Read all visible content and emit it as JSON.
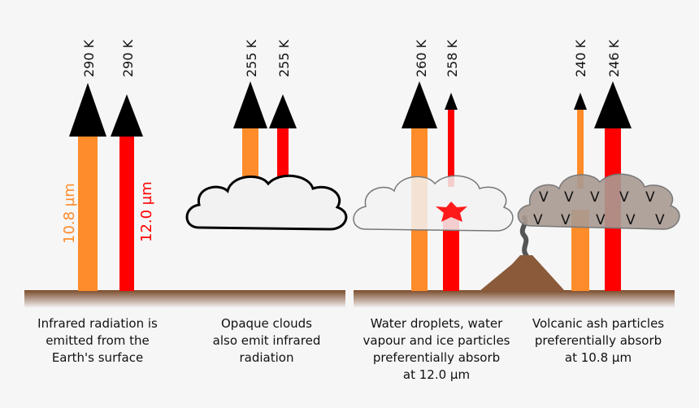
{
  "panels": [
    {
      "caption": [
        "Infrared radiation is",
        "emitted from the",
        "Earth's surface"
      ],
      "temps": [
        "290 K",
        "290 K"
      ]
    },
    {
      "caption": [
        "Opaque clouds",
        "also emit infrared",
        "radiation"
      ],
      "temps": [
        "255 K",
        "255 K"
      ]
    },
    {
      "caption": [
        "Water droplets, water",
        "vapour and ice particles",
        "preferentially absorb",
        "at 12.0 µm"
      ],
      "temps": [
        "260 K",
        "258 K"
      ]
    },
    {
      "caption": [
        "Volcanic ash particles",
        "preferentially absorb",
        "at 10.8 µm"
      ],
      "temps": [
        "240 K",
        "246 K"
      ]
    }
  ],
  "wavelengths": {
    "orange": "10.8 µm",
    "red": "12.0 µm"
  },
  "ash_marker": "V",
  "colors": {
    "orange": "#ff8c2a",
    "red": "#ff0000",
    "ground": "#7a4a2a",
    "arrowhead": "#000000",
    "cloud_fill": "#f2f2f2",
    "ash_cloud": "#a89a92",
    "volcano": "#8b5a3a"
  }
}
